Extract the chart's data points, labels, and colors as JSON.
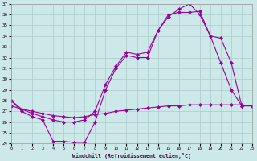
{
  "xlabel": "Windchill (Refroidissement éolien,°C)",
  "background_color": "#cce8e8",
  "grid_color": "#aacccc",
  "line_color": "#990099",
  "xlim": [
    0,
    23
  ],
  "ylim": [
    24,
    37
  ],
  "yticks": [
    24,
    25,
    26,
    27,
    28,
    29,
    30,
    31,
    32,
    33,
    34,
    35,
    36,
    37
  ],
  "xticks": [
    0,
    1,
    2,
    3,
    4,
    5,
    6,
    7,
    8,
    9,
    10,
    11,
    12,
    13,
    14,
    15,
    16,
    17,
    18,
    19,
    20,
    21,
    22,
    23
  ],
  "line1_x": [
    0,
    1,
    2,
    3,
    4,
    5,
    6,
    7,
    8,
    9,
    10,
    11,
    12,
    13,
    14,
    15,
    16,
    17,
    18,
    19,
    20,
    21,
    22,
    23
  ],
  "line1_y": [
    28.0,
    27.0,
    26.5,
    26.2,
    24.2,
    24.2,
    24.1,
    24.1,
    26.0,
    29.0,
    31.0,
    32.2,
    32.0,
    32.0,
    34.5,
    35.8,
    36.5,
    37.0,
    36.0,
    34.0,
    31.5,
    29.0,
    27.5,
    27.5
  ],
  "line2_x": [
    0,
    1,
    2,
    3,
    4,
    5,
    6,
    7,
    8,
    9,
    10,
    11,
    12,
    13,
    14,
    15,
    16,
    17,
    18,
    19,
    20,
    21,
    22,
    23
  ],
  "line2_y": [
    28.0,
    27.2,
    26.8,
    26.5,
    26.2,
    26.0,
    26.0,
    26.2,
    27.0,
    29.5,
    31.2,
    32.5,
    32.3,
    32.5,
    34.5,
    36.0,
    36.2,
    36.2,
    36.3,
    34.0,
    33.8,
    31.5,
    27.5,
    27.5
  ],
  "line3_x": [
    0,
    1,
    2,
    3,
    4,
    5,
    6,
    7,
    8,
    9,
    10,
    11,
    12,
    13,
    14,
    15,
    16,
    17,
    18,
    19,
    20,
    21,
    22,
    23
  ],
  "line3_y": [
    27.5,
    27.2,
    27.0,
    26.8,
    26.6,
    26.5,
    26.4,
    26.5,
    26.7,
    26.8,
    27.0,
    27.1,
    27.2,
    27.3,
    27.4,
    27.5,
    27.5,
    27.6,
    27.6,
    27.6,
    27.6,
    27.6,
    27.6,
    27.5
  ]
}
